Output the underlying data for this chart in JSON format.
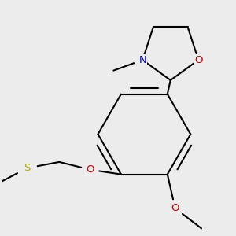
{
  "bg_color": "#ececec",
  "atom_colors": {
    "N": "#0000cc",
    "O": "#cc0000",
    "S": "#aaaa00"
  },
  "bond_color": "#000000",
  "bond_width": 1.5,
  "font_size_atoms": 9.5
}
